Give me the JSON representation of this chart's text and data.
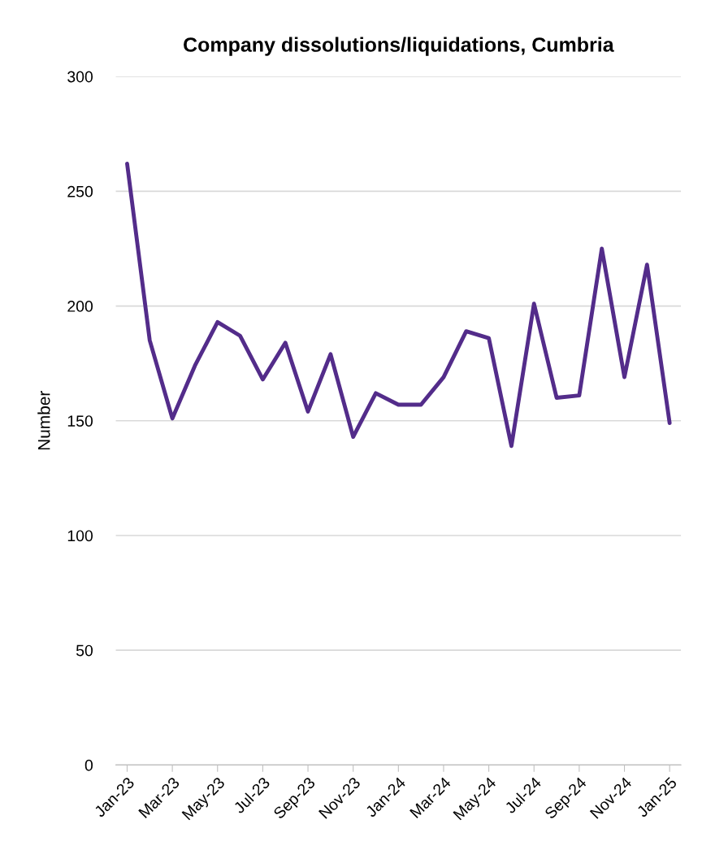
{
  "chart_data": {
    "type": "line",
    "title": "Company dissolutions/liquidations, Cumbria",
    "ylabel": "Number",
    "categories": [
      "Jan-23",
      null,
      "Mar-23",
      null,
      "May-23",
      null,
      "Jul-23",
      null,
      "Sep-23",
      null,
      "Nov-23",
      null,
      "Jan-24",
      null,
      "Mar-24",
      null,
      "May-24",
      null,
      "Jul-24",
      null,
      "Sep-24",
      null,
      "Nov-24",
      null,
      "Jan-25"
    ],
    "series": [
      {
        "color": "#532c8a",
        "values": [
          262,
          185,
          151,
          174,
          193,
          187,
          168,
          184,
          154,
          179,
          143,
          162,
          157,
          157,
          169,
          189,
          186,
          139,
          201,
          160,
          161,
          225,
          169,
          218,
          149
        ]
      }
    ],
    "ylim": [
      0,
      300
    ],
    "yticks": [
      0,
      50,
      100,
      150,
      200,
      250,
      300
    ],
    "grid": "y",
    "marker": "none",
    "line_style": "solid"
  }
}
